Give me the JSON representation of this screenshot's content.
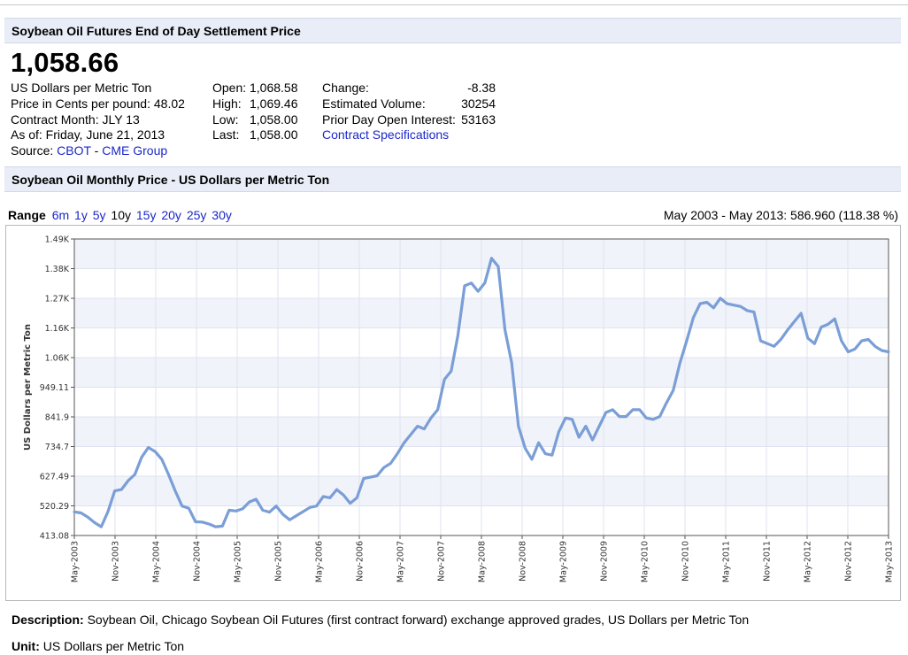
{
  "header": {
    "title": "Soybean Oil Futures End of Day Settlement Price"
  },
  "quote": {
    "price": "1,058.66",
    "unit_line": "US Dollars per Metric Ton",
    "cents_line": "Price in Cents per pound: 48.02",
    "contract_line": "Contract Month: JLY 13",
    "asof_line": "As of: Friday, June 21, 2013",
    "source_label": "Source:",
    "source_cbot": "CBOT",
    "source_sep": " - ",
    "source_cme": "CME Group",
    "open_label": "Open:",
    "open_value": "1,068.58",
    "high_label": "High:",
    "high_value": "1,069.46",
    "low_label": "Low:",
    "low_value": "1,058.00",
    "last_label": "Last:",
    "last_value": "1,058.00",
    "change_label": "Change:",
    "change_value": "-8.38",
    "volume_label": "Estimated Volume:",
    "volume_value": "30254",
    "oi_label": "Prior Day Open Interest:",
    "oi_value": "53163",
    "spec_link": "Contract Specifications"
  },
  "chart_header": {
    "title": "Soybean Oil Monthly Price - US Dollars per Metric Ton"
  },
  "range": {
    "label": "Range",
    "options": [
      "6m",
      "1y",
      "5y",
      "10y",
      "15y",
      "20y",
      "25y",
      "30y"
    ],
    "selected": "10y",
    "summary": "May 2003 - May 2013: 586.960 (118.38 %)"
  },
  "chart_data": {
    "type": "line",
    "ylabel": "US Dollars per Metric Ton",
    "ylim": [
      413.08,
      1490
    ],
    "y_ticks": [
      "413.08",
      "520.29",
      "627.49",
      "734.7",
      "841.9",
      "949.11",
      "1.06K",
      "1.16K",
      "1.27K",
      "1.38K",
      "1.49K"
    ],
    "x_ticks": [
      "May-2003",
      "Nov-2003",
      "May-2004",
      "Nov-2004",
      "May-2005",
      "Nov-2005",
      "May-2006",
      "Nov-2006",
      "May-2007",
      "Nov-2007",
      "May-2008",
      "Nov-2008",
      "May-2009",
      "Nov-2009",
      "May-2010",
      "Nov-2010",
      "May-2011",
      "Nov-2011",
      "May-2012",
      "Nov-2012",
      "May-2013"
    ],
    "x_start": "2003-05",
    "x_end": "2013-05",
    "grid": true,
    "line_color": "#7a9ed6",
    "series": [
      {
        "values": [
          499,
          495,
          480,
          460,
          445,
          500,
          575,
          580,
          612,
          635,
          697,
          733,
          718,
          690,
          635,
          575,
          520,
          512,
          463,
          462,
          455,
          445,
          447,
          505,
          502,
          510,
          535,
          545,
          505,
          498,
          520,
          490,
          470,
          485,
          500,
          515,
          520,
          555,
          550,
          580,
          560,
          530,
          550,
          620,
          625,
          630,
          660,
          675,
          710,
          750,
          780,
          810,
          800,
          840,
          870,
          980,
          1010,
          1140,
          1320,
          1330,
          1300,
          1330,
          1420,
          1390,
          1160,
          1040,
          810,
          730,
          690,
          750,
          710,
          705,
          790,
          840,
          835,
          770,
          810,
          760,
          810,
          860,
          870,
          845,
          845,
          870,
          870,
          840,
          835,
          845,
          895,
          940,
          1040,
          1120,
          1205,
          1255,
          1260,
          1240,
          1275,
          1255,
          1250,
          1245,
          1230,
          1225,
          1120,
          1110,
          1100,
          1125,
          1160,
          1190,
          1220,
          1130,
          1110,
          1170,
          1180,
          1200,
          1120,
          1080,
          1090,
          1120,
          1125,
          1100,
          1085,
          1080
        ]
      }
    ]
  }
}
